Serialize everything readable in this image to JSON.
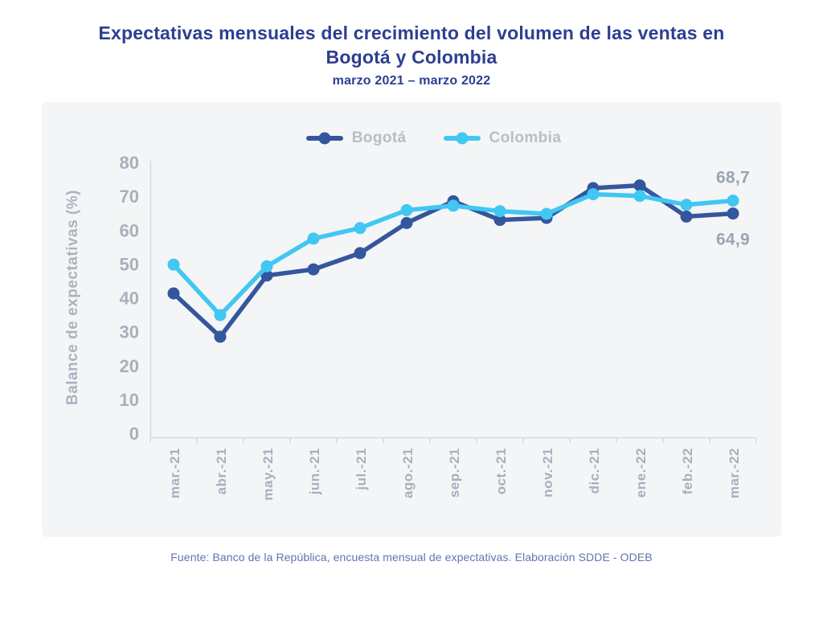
{
  "header": {
    "title": "Expectativas mensuales del crecimiento del volumen de las ventas en Bogotá y Colombia",
    "subtitle": "marzo 2021 – marzo 2022"
  },
  "chart_data": {
    "type": "line",
    "title": "Expectativas mensuales del crecimiento del volumen de las ventas en Bogotá y Colombia",
    "subtitle": "marzo 2021 – marzo 2022",
    "categories": [
      "mar.-21",
      "abr.-21",
      "may.-21",
      "jun.-21",
      "jul.-21",
      "ago.-21",
      "sep.-21",
      "oct.-21",
      "nov.-21",
      "dic.-21",
      "ene.-22",
      "feb.-22",
      "mar.-22"
    ],
    "series": [
      {
        "name": "Bogotá",
        "color": "#34569e",
        "values": [
          41.3,
          28.5,
          46.6,
          48.4,
          53.2,
          62.1,
          68.5,
          63.0,
          63.6,
          72.4,
          73.2,
          64.0,
          64.9
        ]
      },
      {
        "name": "Colombia",
        "color": "#41c7f2",
        "values": [
          49.8,
          34.9,
          49.3,
          57.5,
          60.6,
          65.9,
          67.2,
          65.6,
          64.8,
          70.6,
          70.1,
          67.5,
          68.7
        ]
      }
    ],
    "xlabel": "",
    "ylabel": "Balance de expectativas (%)",
    "ylim": [
      0,
      80
    ],
    "yticks": [
      0,
      10,
      20,
      30,
      40,
      50,
      60,
      70,
      80
    ],
    "grid": false,
    "legend_position": "top",
    "annotations": [
      {
        "series": "Colombia",
        "text": "68,7",
        "placement": "above"
      },
      {
        "series": "Bogotá",
        "text": "64,9",
        "placement": "below"
      }
    ]
  },
  "footer": {
    "source": "Fuente: Banco de la República, encuesta mensual de expectativas. Elaboración SDDE - ODEB"
  },
  "colors": {
    "title_text": "#2d3e92",
    "line_bogota": "#34569e",
    "line_colombia": "#41c7f2",
    "axis_line": "#d6dade",
    "axis_tick_text": "#a7b0bd",
    "y_axis_title_text": "#aab3c0",
    "legend_text": "#b6bec9",
    "end_label_text": "#9aa4b1",
    "panel_bg": "#f4f5f6",
    "footer_text": "#6474ac"
  }
}
